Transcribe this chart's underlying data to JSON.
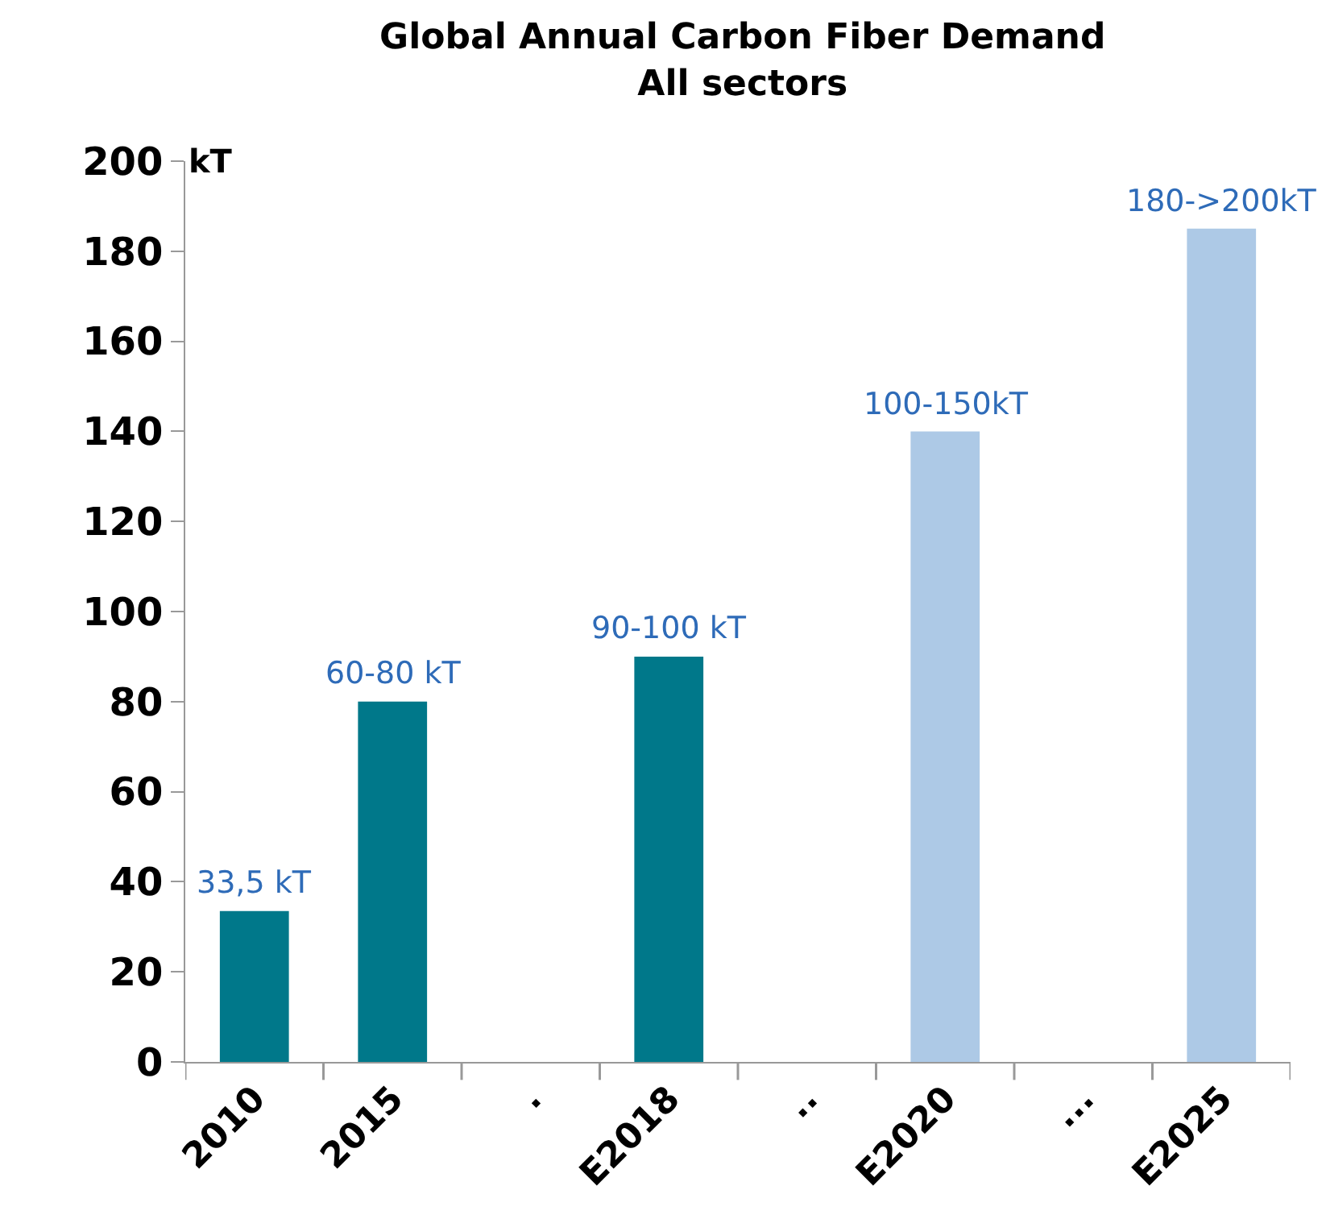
{
  "chart_data": {
    "type": "bar",
    "title": "Global Annual Carbon Fiber Demand",
    "subtitle": "All sectors",
    "ylabel": "kT",
    "categories": [
      "2010",
      "2015",
      ".",
      "E2018",
      "..",
      "E2020",
      "...",
      "E2025"
    ],
    "values": [
      33.5,
      80,
      null,
      90,
      null,
      140,
      null,
      185
    ],
    "colors": [
      "#00788a",
      "#00788a",
      "#00788a",
      "#00788a",
      "#adc9e6",
      "#adc9e6",
      "#adc9e6",
      "#adc9e6"
    ],
    "value_labels": [
      "33,5 kT",
      "60-80 kT",
      null,
      "90-100 kT",
      null,
      "100-150kT",
      null,
      "180->200kT"
    ],
    "ylim": [
      0,
      200
    ],
    "yticks": [
      0,
      20,
      40,
      60,
      80,
      100,
      120,
      140,
      160,
      180,
      200
    ]
  }
}
